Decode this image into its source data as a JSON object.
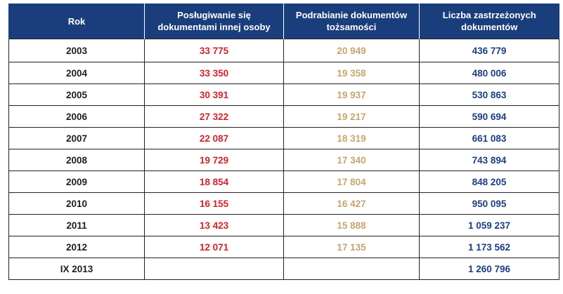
{
  "table": {
    "headers": [
      "Rok",
      "Posługiwanie się dokumentami innej osoby",
      "Podrabianie dokumentów tożsamości",
      "Liczba zastrzeżonych dokumentów"
    ],
    "rows": [
      {
        "year": "2003",
        "a": "33 775",
        "b": "20 949",
        "c": "436 779"
      },
      {
        "year": "2004",
        "a": "33 350",
        "b": "19 358",
        "c": "480 006"
      },
      {
        "year": "2005",
        "a": "30 391",
        "b": "19 937",
        "c": "530 863"
      },
      {
        "year": "2006",
        "a": "27 322",
        "b": "19 217",
        "c": "590 694"
      },
      {
        "year": "2007",
        "a": "22 087",
        "b": "18 319",
        "c": "661 083"
      },
      {
        "year": "2008",
        "a": "19 729",
        "b": "17 340",
        "c": "743 894"
      },
      {
        "year": "2009",
        "a": "18 854",
        "b": "17 804",
        "c": "848 205"
      },
      {
        "year": "2010",
        "a": "16 155",
        "b": "16 427",
        "c": "950 095"
      },
      {
        "year": "2011",
        "a": "13 423",
        "b": "15 888",
        "c": "1 059 237"
      },
      {
        "year": "2012",
        "a": "12 071",
        "b": "17 135",
        "c": "1 173 562"
      },
      {
        "year": "IX 2013",
        "a": "",
        "b": "",
        "c": "1 260 796"
      }
    ]
  },
  "colors": {
    "header_bg": "#1a3e7c",
    "header_text": "#ffffff",
    "col_a": "#d2232a",
    "col_b": "#c6a56d",
    "col_c": "#1b3f80",
    "year": "#1f1f1f"
  }
}
